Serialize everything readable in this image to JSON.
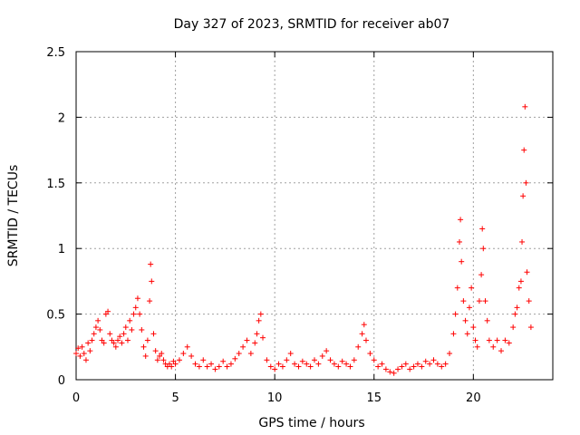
{
  "chart_data": {
    "type": "scatter",
    "title": "Day 327 of 2023, SRMTID for receiver ab07",
    "xlabel": "GPS time / hours",
    "ylabel": "SRMTID / TECUs",
    "xlim": [
      0,
      24
    ],
    "ylim": [
      0,
      2.5
    ],
    "grid": true,
    "marker": "plus",
    "color": "#ff0000",
    "x_ticks": [
      {
        "value": 0,
        "label": "0"
      },
      {
        "value": 5,
        "label": "5"
      },
      {
        "value": 10,
        "label": "10"
      },
      {
        "value": 15,
        "label": "15"
      },
      {
        "value": 20,
        "label": "20"
      }
    ],
    "y_ticks": [
      {
        "value": 0,
        "label": "0"
      },
      {
        "value": 0.5,
        "label": "0.5"
      },
      {
        "value": 1,
        "label": "1"
      },
      {
        "value": 1.5,
        "label": "1.5"
      },
      {
        "value": 2,
        "label": "2"
      },
      {
        "value": 2.5,
        "label": "2.5"
      }
    ],
    "series": [
      {
        "name": "SRMTID",
        "points": [
          [
            0.0,
            0.2
          ],
          [
            0.1,
            0.24
          ],
          [
            0.2,
            0.18
          ],
          [
            0.3,
            0.25
          ],
          [
            0.4,
            0.2
          ],
          [
            0.5,
            0.15
          ],
          [
            0.6,
            0.28
          ],
          [
            0.7,
            0.22
          ],
          [
            0.8,
            0.3
          ],
          [
            0.9,
            0.35
          ],
          [
            1.0,
            0.4
          ],
          [
            1.1,
            0.45
          ],
          [
            1.2,
            0.38
          ],
          [
            1.3,
            0.3
          ],
          [
            1.4,
            0.28
          ],
          [
            1.5,
            0.5
          ],
          [
            1.6,
            0.52
          ],
          [
            1.7,
            0.35
          ],
          [
            1.8,
            0.3
          ],
          [
            1.9,
            0.28
          ],
          [
            2.0,
            0.25
          ],
          [
            2.1,
            0.3
          ],
          [
            2.2,
            0.33
          ],
          [
            2.3,
            0.28
          ],
          [
            2.4,
            0.35
          ],
          [
            2.5,
            0.4
          ],
          [
            2.6,
            0.3
          ],
          [
            2.7,
            0.45
          ],
          [
            2.8,
            0.38
          ],
          [
            2.9,
            0.5
          ],
          [
            3.0,
            0.55
          ],
          [
            3.1,
            0.62
          ],
          [
            3.2,
            0.5
          ],
          [
            3.3,
            0.38
          ],
          [
            3.4,
            0.25
          ],
          [
            3.5,
            0.18
          ],
          [
            3.6,
            0.3
          ],
          [
            3.7,
            0.6
          ],
          [
            3.75,
            0.88
          ],
          [
            3.8,
            0.75
          ],
          [
            3.9,
            0.35
          ],
          [
            4.0,
            0.22
          ],
          [
            4.1,
            0.15
          ],
          [
            4.2,
            0.18
          ],
          [
            4.3,
            0.2
          ],
          [
            4.4,
            0.15
          ],
          [
            4.5,
            0.12
          ],
          [
            4.6,
            0.1
          ],
          [
            4.7,
            0.12
          ],
          [
            4.8,
            0.1
          ],
          [
            4.9,
            0.14
          ],
          [
            5.0,
            0.12
          ],
          [
            5.2,
            0.15
          ],
          [
            5.4,
            0.2
          ],
          [
            5.6,
            0.25
          ],
          [
            5.8,
            0.18
          ],
          [
            6.0,
            0.12
          ],
          [
            6.2,
            0.1
          ],
          [
            6.4,
            0.15
          ],
          [
            6.6,
            0.1
          ],
          [
            6.8,
            0.12
          ],
          [
            7.0,
            0.08
          ],
          [
            7.2,
            0.1
          ],
          [
            7.4,
            0.14
          ],
          [
            7.6,
            0.1
          ],
          [
            7.8,
            0.12
          ],
          [
            8.0,
            0.16
          ],
          [
            8.2,
            0.2
          ],
          [
            8.4,
            0.25
          ],
          [
            8.6,
            0.3
          ],
          [
            8.8,
            0.2
          ],
          [
            9.0,
            0.28
          ],
          [
            9.1,
            0.35
          ],
          [
            9.2,
            0.45
          ],
          [
            9.3,
            0.5
          ],
          [
            9.4,
            0.32
          ],
          [
            9.6,
            0.15
          ],
          [
            9.8,
            0.1
          ],
          [
            10.0,
            0.08
          ],
          [
            10.2,
            0.12
          ],
          [
            10.4,
            0.1
          ],
          [
            10.6,
            0.15
          ],
          [
            10.8,
            0.2
          ],
          [
            11.0,
            0.12
          ],
          [
            11.2,
            0.1
          ],
          [
            11.4,
            0.14
          ],
          [
            11.6,
            0.12
          ],
          [
            11.8,
            0.1
          ],
          [
            12.0,
            0.15
          ],
          [
            12.2,
            0.12
          ],
          [
            12.4,
            0.18
          ],
          [
            12.6,
            0.22
          ],
          [
            12.8,
            0.15
          ],
          [
            13.0,
            0.12
          ],
          [
            13.2,
            0.1
          ],
          [
            13.4,
            0.14
          ],
          [
            13.6,
            0.12
          ],
          [
            13.8,
            0.1
          ],
          [
            14.0,
            0.15
          ],
          [
            14.2,
            0.25
          ],
          [
            14.4,
            0.35
          ],
          [
            14.5,
            0.42
          ],
          [
            14.6,
            0.3
          ],
          [
            14.8,
            0.2
          ],
          [
            15.0,
            0.15
          ],
          [
            15.2,
            0.1
          ],
          [
            15.4,
            0.12
          ],
          [
            15.6,
            0.08
          ],
          [
            15.8,
            0.06
          ],
          [
            16.0,
            0.05
          ],
          [
            16.2,
            0.08
          ],
          [
            16.4,
            0.1
          ],
          [
            16.6,
            0.12
          ],
          [
            16.8,
            0.08
          ],
          [
            17.0,
            0.1
          ],
          [
            17.2,
            0.12
          ],
          [
            17.4,
            0.1
          ],
          [
            17.6,
            0.14
          ],
          [
            17.8,
            0.12
          ],
          [
            18.0,
            0.15
          ],
          [
            18.2,
            0.12
          ],
          [
            18.4,
            0.1
          ],
          [
            18.6,
            0.12
          ],
          [
            18.8,
            0.2
          ],
          [
            19.0,
            0.35
          ],
          [
            19.1,
            0.5
          ],
          [
            19.2,
            0.7
          ],
          [
            19.3,
            1.05
          ],
          [
            19.35,
            1.22
          ],
          [
            19.4,
            0.9
          ],
          [
            19.5,
            0.6
          ],
          [
            19.6,
            0.45
          ],
          [
            19.7,
            0.35
          ],
          [
            19.8,
            0.55
          ],
          [
            19.9,
            0.7
          ],
          [
            20.0,
            0.4
          ],
          [
            20.1,
            0.3
          ],
          [
            20.2,
            0.25
          ],
          [
            20.3,
            0.6
          ],
          [
            20.4,
            0.8
          ],
          [
            20.45,
            1.15
          ],
          [
            20.5,
            1.0
          ],
          [
            20.6,
            0.6
          ],
          [
            20.7,
            0.45
          ],
          [
            20.8,
            0.3
          ],
          [
            21.0,
            0.25
          ],
          [
            21.2,
            0.3
          ],
          [
            21.4,
            0.22
          ],
          [
            21.6,
            0.3
          ],
          [
            21.8,
            0.28
          ],
          [
            22.0,
            0.4
          ],
          [
            22.1,
            0.5
          ],
          [
            22.2,
            0.55
          ],
          [
            22.3,
            0.7
          ],
          [
            22.4,
            0.75
          ],
          [
            22.45,
            1.05
          ],
          [
            22.5,
            1.4
          ],
          [
            22.55,
            1.75
          ],
          [
            22.6,
            2.08
          ],
          [
            22.65,
            1.5
          ],
          [
            22.7,
            0.82
          ],
          [
            22.8,
            0.6
          ],
          [
            22.9,
            0.4
          ]
        ]
      }
    ]
  }
}
